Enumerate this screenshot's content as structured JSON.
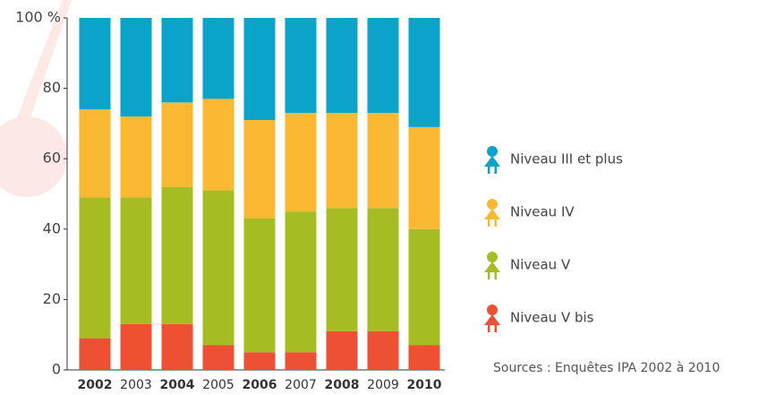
{
  "chart_data": {
    "type": "stacked_bar",
    "categories": [
      "2002",
      "2003",
      "2004",
      "2005",
      "2006",
      "2007",
      "2008",
      "2009",
      "2010"
    ],
    "series": [
      {
        "name": "Niveau V bis",
        "color": "#ee5034",
        "values": [
          9,
          13,
          13,
          7,
          5,
          5,
          11,
          11,
          7
        ]
      },
      {
        "name": "Niveau V",
        "color": "#a6bc22",
        "values": [
          40,
          36,
          39,
          44,
          38,
          40,
          35,
          35,
          33
        ]
      },
      {
        "name": "Niveau IV",
        "color": "#fbb933",
        "values": [
          25,
          23,
          24,
          26,
          28,
          28,
          27,
          27,
          29
        ]
      },
      {
        "name": "Niveau III et plus",
        "color": "#0ba3c9",
        "values": [
          26,
          28,
          24,
          23,
          29,
          27,
          27,
          27,
          31
        ]
      }
    ],
    "ylim": [
      0,
      100
    ],
    "yticks": [
      0,
      20,
      40,
      60,
      80,
      {
        "value": 100,
        "label": "100 %"
      }
    ],
    "source": "Sources : Enquêtes IPA 2002 à 2010"
  }
}
